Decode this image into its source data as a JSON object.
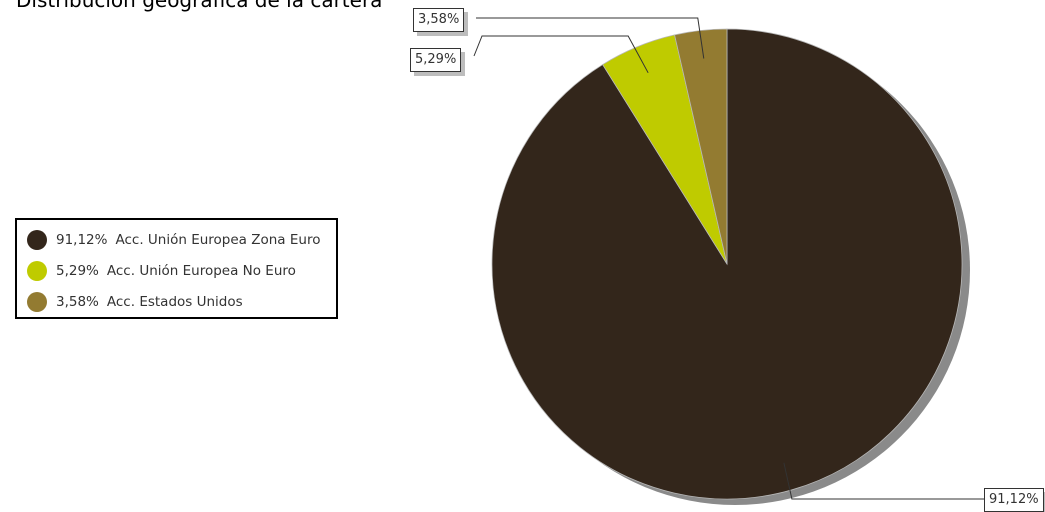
{
  "chart_data": {
    "type": "pie",
    "title": "Distribución geográfica de la cartera",
    "slices": [
      {
        "label": "Acc. Unión Europea Zona Euro",
        "value": 91.12,
        "value_label": "91,12%",
        "color": "#33261b"
      },
      {
        "label": "Acc. Unión Europea No Euro",
        "value": 5.29,
        "value_label": "5,29%",
        "color": "#bfcb00"
      },
      {
        "label": "Acc. Estados Unidos",
        "value": 3.58,
        "value_label": "3,58%",
        "color": "#937b31"
      }
    ],
    "legend_placement": "left",
    "shadow_color": "#8a8a8a"
  }
}
